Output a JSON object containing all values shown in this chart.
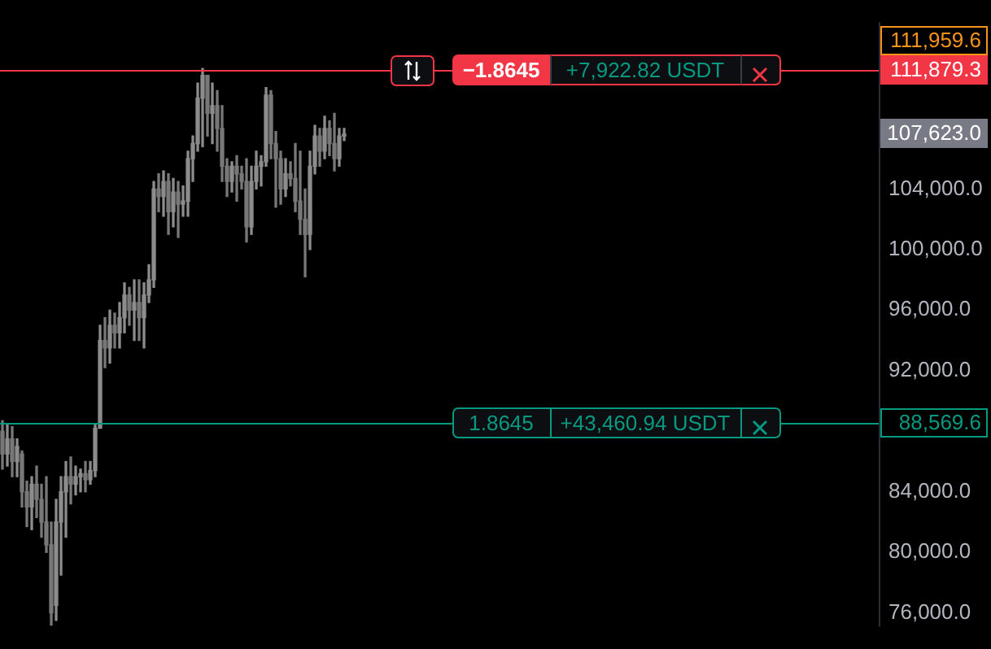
{
  "chart_data": {
    "type": "candlestick",
    "categories": [
      null,
      null,
      null,
      null,
      null,
      null,
      null,
      null,
      null,
      null,
      null,
      null,
      null,
      null,
      null,
      null,
      null,
      null,
      null,
      null,
      null,
      null,
      null,
      null,
      null,
      null,
      null,
      null,
      null,
      null,
      null,
      null,
      null,
      null,
      null,
      null,
      null,
      null,
      null,
      null,
      null,
      null,
      null,
      null,
      null,
      null,
      null,
      null,
      null,
      null,
      null,
      null,
      null,
      null,
      null,
      null,
      null,
      null,
      null,
      null,
      null,
      null,
      null,
      null,
      null,
      null,
      null,
      null,
      null,
      null,
      null,
      null,
      null,
      null,
      null,
      null,
      null,
      null,
      null,
      null,
      null,
      null,
      null,
      null,
      null,
      null,
      null,
      null,
      null,
      null,
      null,
      null,
      null,
      null,
      null,
      null,
      null,
      null,
      null,
      null,
      null,
      null,
      null,
      null,
      null,
      null,
      null,
      null,
      null,
      null,
      null,
      null,
      null,
      null,
      null,
      null,
      null,
      null,
      null,
      null,
      null,
      null,
      null,
      null,
      null,
      null,
      null,
      null,
      null,
      null,
      null,
      null,
      null,
      null,
      null,
      null,
      null,
      null,
      null,
      null,
      null,
      null,
      null,
      null,
      null,
      null,
      null,
      null,
      null,
      null,
      null,
      null,
      null,
      null,
      null,
      null,
      null,
      null,
      null,
      null,
      null,
      null,
      null,
      null,
      null,
      null,
      null,
      null,
      null,
      null,
      null,
      null,
      null,
      null,
      null,
      null,
      null,
      null,
      null,
      null
    ],
    "ohlc": [
      [
        88000,
        88700,
        85500,
        86500
      ],
      [
        86500,
        88500,
        85700,
        87500
      ],
      [
        87500,
        88300,
        85000,
        86000
      ],
      [
        86000,
        87500,
        85000,
        87000
      ],
      [
        86500,
        86700,
        83000,
        84000
      ],
      [
        84000,
        84700,
        81700,
        83000
      ],
      [
        83000,
        85000,
        81500,
        84500
      ],
      [
        84500,
        85700,
        82300,
        83500
      ],
      [
        83500,
        84500,
        81000,
        82000
      ],
      [
        82000,
        85000,
        80000,
        80500
      ],
      [
        80500,
        82000,
        75200,
        76000
      ],
      [
        76500,
        83500,
        75500,
        82000
      ],
      [
        82000,
        85000,
        78500,
        84000
      ],
      [
        84000,
        86000,
        81000,
        85000
      ],
      [
        85000,
        86300,
        83200,
        84500
      ],
      [
        84500,
        85700,
        83800,
        85000
      ],
      [
        85000,
        85500,
        84000,
        85200
      ],
      [
        85200,
        86000,
        84000,
        84800
      ],
      [
        84800,
        86000,
        84500,
        85400
      ],
      [
        85400,
        88500,
        85000,
        88200
      ],
      [
        88200,
        95000,
        88200,
        94000
      ],
      [
        94000,
        95500,
        92200,
        93500
      ],
      [
        93500,
        96000,
        92500,
        95000
      ],
      [
        95000,
        95800,
        93500,
        94500
      ],
      [
        94500,
        96500,
        93500,
        95500
      ],
      [
        95500,
        97800,
        94500,
        97000
      ],
      [
        97000,
        97500,
        95000,
        96000
      ],
      [
        96000,
        98000,
        94000,
        96500
      ],
      [
        96500,
        98000,
        94000,
        95500
      ],
      [
        95500,
        97800,
        93500,
        97000
      ],
      [
        97000,
        99000,
        96500,
        98000
      ],
      [
        98000,
        104500,
        97500,
        104000
      ],
      [
        104000,
        105000,
        102500,
        103500
      ],
      [
        103500,
        105200,
        102200,
        104500
      ],
      [
        104500,
        105000,
        101000,
        102500
      ],
      [
        102500,
        104700,
        101500,
        103800
      ],
      [
        103800,
        104500,
        100800,
        103000
      ],
      [
        103000,
        104200,
        102200,
        103200
      ],
      [
        103200,
        106500,
        102200,
        106000
      ],
      [
        106000,
        107500,
        104500,
        107000
      ],
      [
        107000,
        111000,
        106500,
        110000
      ],
      [
        110000,
        111959.6,
        106800,
        111500
      ],
      [
        111500,
        111500,
        107500,
        109000
      ],
      [
        109000,
        111000,
        107000,
        109500
      ],
      [
        109500,
        110500,
        106500,
        108000
      ],
      [
        108000,
        109500,
        104500,
        105500
      ],
      [
        105500,
        106000,
        103500,
        104500
      ],
      [
        104500,
        105800,
        103800,
        105500
      ],
      [
        105500,
        106200,
        103200,
        105000
      ],
      [
        105000,
        105500,
        104000,
        104500
      ],
      [
        104500,
        106000,
        100500,
        101500
      ],
      [
        101500,
        105500,
        101000,
        104500
      ],
      [
        104500,
        106500,
        104000,
        105500
      ],
      [
        105500,
        106200,
        104200,
        105800
      ],
      [
        105800,
        110700,
        105500,
        110200
      ],
      [
        110200,
        110500,
        106000,
        107000
      ],
      [
        107000,
        107800,
        102800,
        106000
      ],
      [
        106000,
        106500,
        103000,
        104000
      ],
      [
        104000,
        106000,
        103500,
        105000
      ],
      [
        105000,
        105800,
        104200,
        104700
      ],
      [
        104700,
        107000,
        102500,
        103200
      ],
      [
        103200,
        106500,
        101000,
        102000
      ],
      [
        102000,
        104000,
        98200,
        101000
      ],
      [
        101000,
        106500,
        100000,
        105500
      ],
      [
        105500,
        108200,
        105000,
        107500
      ],
      [
        107500,
        108000,
        105500,
        106500
      ],
      [
        106500,
        108800,
        106000,
        108000
      ],
      [
        108000,
        108500,
        106200,
        107000
      ],
      [
        107000,
        109000,
        105200,
        106000
      ],
      [
        106000,
        108000,
        105500,
        107500
      ],
      [
        107500,
        108000,
        107200,
        107623
      ],
      null,
      null,
      null,
      null,
      null,
      null,
      null,
      null,
      null,
      null,
      null,
      null,
      null,
      null,
      null,
      null,
      null,
      null,
      null,
      null,
      null,
      null,
      null,
      null,
      null,
      null,
      null,
      null,
      null,
      null,
      null,
      null,
      null,
      null,
      null,
      null,
      null,
      null,
      null,
      null,
      null,
      null,
      null,
      null,
      null,
      null,
      null,
      null,
      null,
      null,
      null,
      null,
      null,
      null,
      null,
      null,
      null,
      null,
      null,
      null,
      null,
      null,
      null,
      null,
      null,
      null,
      null,
      null,
      null,
      null,
      null,
      null,
      null,
      null,
      null,
      null,
      null,
      null,
      null,
      null,
      null,
      null,
      null,
      null,
      null,
      null,
      null,
      null,
      null,
      null,
      null,
      null,
      null,
      null,
      null,
      null,
      null,
      null,
      null,
      null,
      null,
      null,
      null,
      null,
      null,
      null,
      null,
      null,
      null
    ],
    "colors": [
      "#787878",
      "#8c8c8c",
      "#787878",
      "#8c8c8c",
      "#787878",
      "#787878",
      "#8c8c8c",
      "#787878",
      "#787878",
      "#787878",
      "#787878",
      "#8c8c8c",
      "#8c8c8c",
      "#8c8c8c",
      "#787878",
      "#8c8c8c",
      "#8c8c8c",
      "#787878",
      "#8c8c8c",
      "#8c8c8c",
      "#8c8c8c",
      "#787878",
      "#8c8c8c",
      "#787878",
      "#8c8c8c",
      "#8c8c8c",
      "#787878",
      "#8c8c8c",
      "#787878",
      "#8c8c8c",
      "#8c8c8c",
      "#8c8c8c",
      "#787878",
      "#8c8c8c",
      "#787878",
      "#8c8c8c",
      "#787878",
      "#8c8c8c",
      "#8c8c8c",
      "#8c8c8c",
      "#8c8c8c",
      "#8c8c8c",
      "#787878",
      "#8c8c8c",
      "#787878",
      "#787878",
      "#787878",
      "#8c8c8c",
      "#787878",
      "#787878",
      "#787878",
      "#8c8c8c",
      "#8c8c8c",
      "#8c8c8c",
      "#8c8c8c",
      "#787878",
      "#787878",
      "#787878",
      "#8c8c8c",
      "#787878",
      "#787878",
      "#787878",
      "#787878",
      "#8c8c8c",
      "#8c8c8c",
      "#787878",
      "#8c8c8c",
      "#787878",
      "#787878",
      "#8c8c8c",
      "#8c8c8c",
      null,
      null,
      null,
      null,
      null,
      null,
      null,
      null,
      null,
      null,
      null,
      null,
      null,
      null,
      null,
      null,
      null,
      null,
      null,
      null,
      null,
      null,
      null,
      null,
      null,
      null,
      null,
      null,
      null,
      null,
      null,
      null,
      null,
      null,
      null,
      null,
      null,
      null,
      null,
      null,
      null,
      null,
      null,
      null,
      null,
      null,
      null,
      null,
      null,
      null,
      null,
      null,
      null,
      null,
      null,
      null,
      null,
      null,
      null,
      null,
      null,
      null,
      null,
      null,
      null,
      null,
      null,
      null,
      null,
      null,
      null,
      null,
      null,
      null,
      null,
      null,
      null,
      null,
      null,
      null,
      null,
      null,
      null,
      null,
      null,
      null,
      null,
      null,
      null,
      null,
      null,
      null,
      null,
      null,
      null,
      null,
      null,
      null,
      null,
      null,
      null,
      null,
      null,
      null,
      null,
      null,
      null,
      null,
      null
    ],
    "ylim": [
      75100,
      115000
    ],
    "yticks": [
      {
        "value": 76000,
        "label": "76,000.0"
      },
      {
        "value": 80000,
        "label": "80,000.0"
      },
      {
        "value": 84000,
        "label": "84,000.0"
      },
      {
        "value": 92000,
        "label": "92,000.0"
      },
      {
        "value": 96000,
        "label": "96,000.0"
      },
      {
        "value": 100000,
        "label": "100,000.0"
      },
      {
        "value": 104000,
        "label": "104,000.0"
      }
    ],
    "tick_labels": "y",
    "ref_lines": [
      {
        "axis": "y",
        "value": 111879.3,
        "label": "111,879.3",
        "color": "#f23645"
      },
      {
        "axis": "y",
        "value": 88569.6,
        "label": "88,569.6",
        "color": "#089981"
      }
    ],
    "annotations": [
      {
        "text": "−1.8645",
        "y": 111879.3
      },
      {
        "text": "+7,922.82 USDT",
        "y": 111879.3
      },
      {
        "text": "1.8645",
        "y": 88569.6
      },
      {
        "text": "+43,460.94 USDT",
        "y": 88569.6
      },
      "111,959.6",
      "107,623.0"
    ]
  }
}
